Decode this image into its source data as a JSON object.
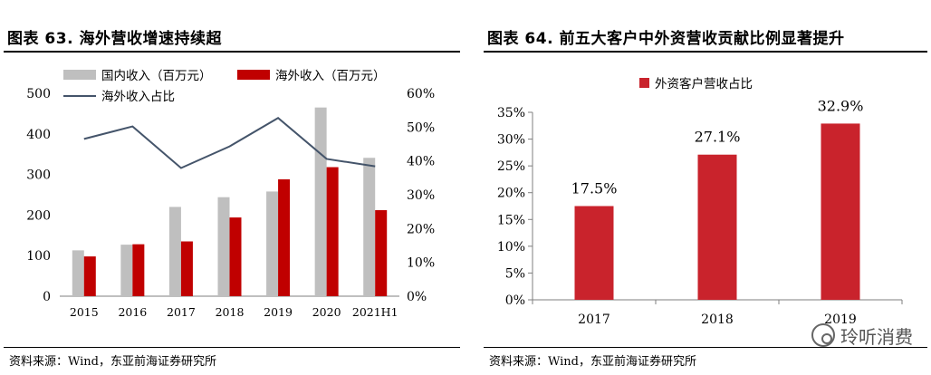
{
  "left_panel": {
    "title": "图表 63. 海外营收增速持续超",
    "source": "资料来源：Wind，东亚前海证券研究所"
  },
  "right_panel": {
    "title": "图表 64. 前五大客户中外资营收贡献比例显著提升",
    "source": "资料来源：Wind，东亚前海证券研究所"
  },
  "watermark": {
    "icon": "wechat-icon",
    "text": "玲听消费"
  },
  "colors": {
    "gray": "#bfbfbf",
    "dark_red": "#c00000",
    "red": "#c9232c",
    "line": "#44546a"
  },
  "chart_data": [
    {
      "type": "bar",
      "title": "海外营收增速持续超",
      "categories": [
        "2015",
        "2016",
        "2017",
        "2018",
        "2019",
        "2020",
        "2021H1"
      ],
      "series": [
        {
          "name": "国内收入（百万元）",
          "type": "bar",
          "axis": "left",
          "values": [
            113,
            127,
            220,
            244,
            258,
            465,
            341
          ]
        },
        {
          "name": "海外收入（百万元）",
          "type": "bar",
          "axis": "left",
          "values": [
            98,
            128,
            135,
            194,
            288,
            318,
            212
          ]
        },
        {
          "name": "海外收入占比",
          "type": "line",
          "axis": "right",
          "values": [
            46.5,
            50.2,
            37.9,
            44.3,
            52.7,
            40.6,
            38.4
          ]
        }
      ],
      "ylim": [
        0,
        500
      ],
      "yticks": [
        "0",
        "100",
        "200",
        "300",
        "400",
        "500"
      ],
      "y2lim": [
        0,
        60
      ],
      "y2ticks": [
        "0%",
        "10%",
        "20%",
        "30%",
        "40%",
        "50%",
        "60%"
      ],
      "legend": "top-left"
    },
    {
      "type": "bar",
      "title": "前五大客户中外资营收贡献比例显著提升",
      "categories": [
        "2017",
        "2018",
        "2019"
      ],
      "series": [
        {
          "name": "外资客户营收占比",
          "values": [
            17.5,
            27.1,
            32.9
          ]
        }
      ],
      "data_labels": [
        "17.5%",
        "27.1%",
        "32.9%"
      ],
      "ylim": [
        0,
        35
      ],
      "yticks": [
        "0%",
        "5%",
        "10%",
        "15%",
        "20%",
        "25%",
        "30%",
        "35%"
      ],
      "legend": "top-left"
    }
  ]
}
